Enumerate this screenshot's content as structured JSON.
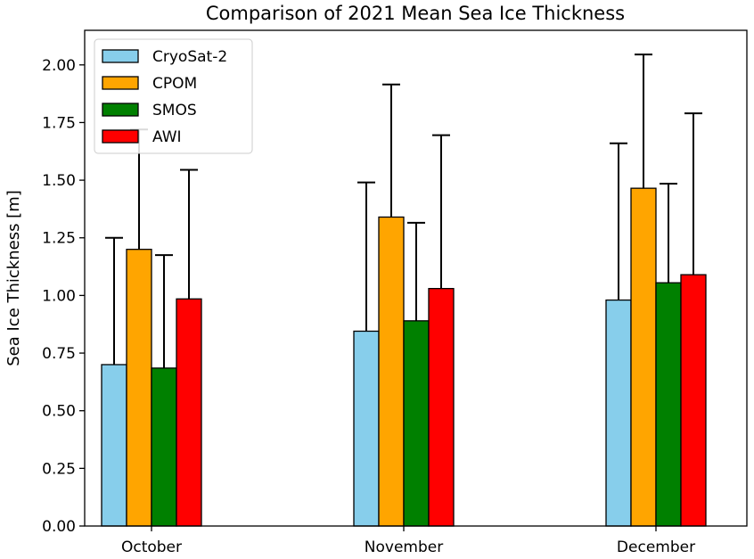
{
  "chart_data": {
    "type": "bar",
    "title": "Comparison of 2021 Mean Sea Ice Thickness",
    "xlabel": "",
    "ylabel": "Sea Ice Thickness [m]",
    "categories": [
      "October",
      "November",
      "December"
    ],
    "ylim": [
      0,
      2.15
    ],
    "yticks": [
      0.0,
      0.25,
      0.5,
      0.75,
      1.0,
      1.25,
      1.5,
      1.75,
      2.0
    ],
    "ytick_labels": [
      "0.00",
      "0.25",
      "0.50",
      "0.75",
      "1.00",
      "1.25",
      "1.50",
      "1.75",
      "2.00"
    ],
    "grid": false,
    "legend_position": "top-left",
    "error_bars": "upper",
    "series": [
      {
        "name": "CryoSat-2",
        "color": "#87CEEB",
        "values": [
          0.7,
          0.845,
          0.98
        ],
        "errors": [
          0.55,
          0.645,
          0.68
        ]
      },
      {
        "name": "CPOM",
        "color": "#FFA500",
        "values": [
          1.2,
          1.34,
          1.465
        ],
        "errors": [
          0.52,
          0.575,
          0.58
        ]
      },
      {
        "name": "SMOS",
        "color": "#008000",
        "values": [
          0.685,
          0.89,
          1.055
        ],
        "errors": [
          0.49,
          0.425,
          0.43
        ]
      },
      {
        "name": "AWI",
        "color": "#FF0000",
        "values": [
          0.985,
          1.03,
          1.09
        ],
        "errors": [
          0.56,
          0.665,
          0.7
        ]
      }
    ]
  }
}
